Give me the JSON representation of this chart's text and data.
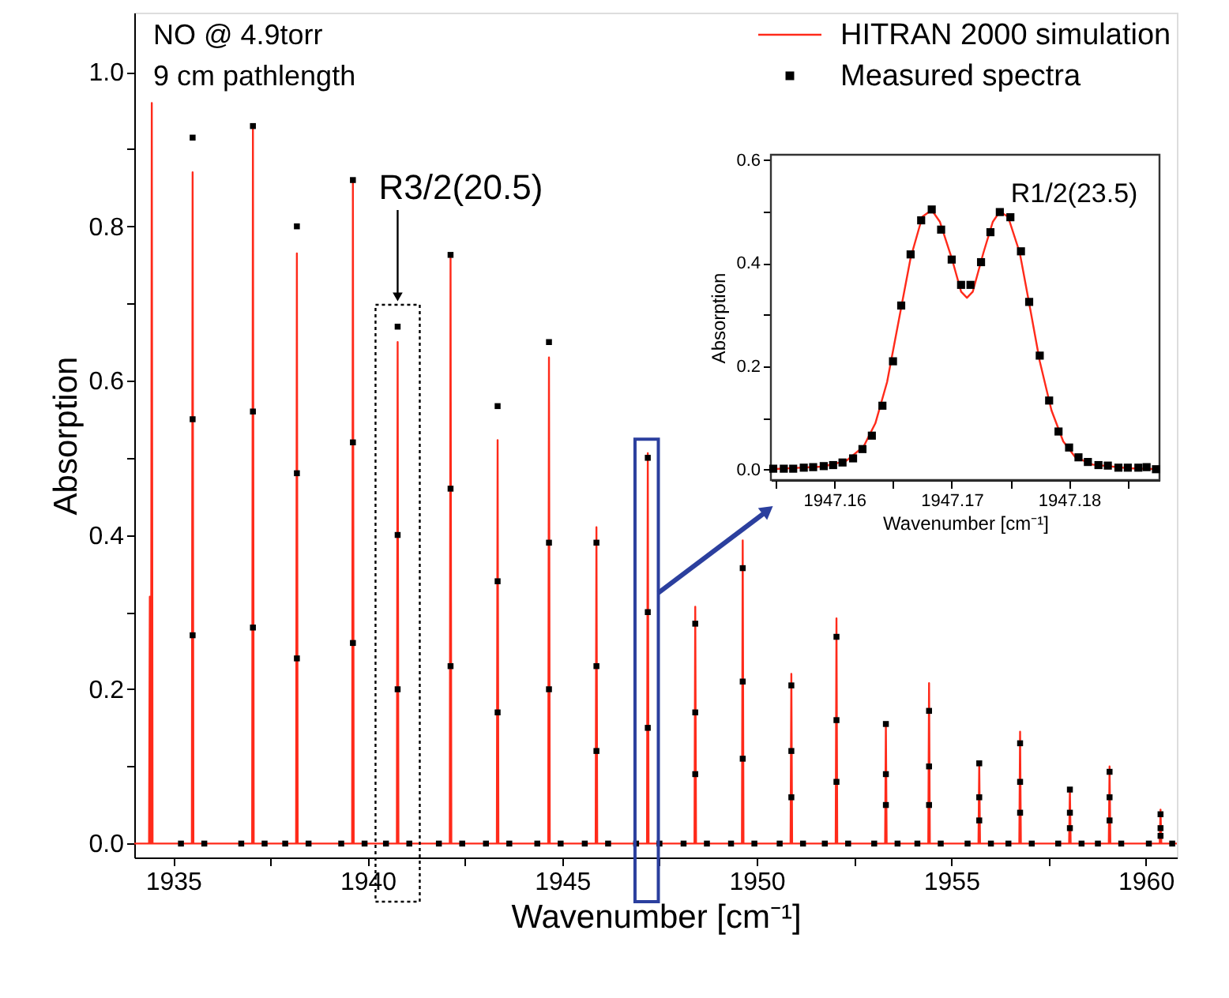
{
  "chart_data": [
    {
      "type": "line",
      "xlabel": "Wavenumber [cm⁻¹]",
      "ylabel": "Absorption",
      "legend": "top right",
      "xlim": [
        1934.0,
        1960.8
      ],
      "ylim": [
        -0.018,
        1.077
      ],
      "xticks": [
        1935,
        {
          "value": 1937.5,
          "label": null
        },
        1940,
        {
          "value": 1942.5,
          "label": null
        },
        1945,
        {
          "value": 1947.5,
          "label": null
        },
        1950,
        {
          "value": 1952.5,
          "label": null
        },
        1955,
        {
          "value": 1957.5,
          "label": null
        },
        1960
      ],
      "yticks": [
        {
          "value": 0,
          "label": "0.0"
        },
        {
          "value": 0.1,
          "label": null
        },
        0.2,
        {
          "value": 0.3,
          "label": null
        },
        0.4,
        {
          "value": 0.5,
          "label": null
        },
        0.6,
        {
          "value": 0.7,
          "label": null
        },
        0.8,
        {
          "value": 0.9,
          "label": null
        },
        {
          "value": 1,
          "label": "1.0"
        }
      ],
      "annotations": [
        "NO @ 4.9torr",
        "9 cm pathlength",
        "R3/2(20.5)"
      ],
      "series": [
        {
          "name": "HITRAN 2000 simulation",
          "type": "line",
          "color": "#ff2a1a",
          "x": [
            1934.0,
            1934.38,
            1934.4,
            1934.42,
            1934.43,
            1934.45,
            1934.47,
            1935.48,
            1935.5,
            1935.52,
            1937.03,
            1937.05,
            1937.07,
            1938.16,
            1938.18,
            1938.2,
            1939.6,
            1939.62,
            1939.64,
            1940.75,
            1940.77,
            1940.79,
            1942.11,
            1942.13,
            1942.15,
            1943.32,
            1943.34,
            1943.36,
            1944.64,
            1944.66,
            1944.68,
            1945.86,
            1945.88,
            1945.9,
            1947.18,
            1947.2,
            1947.22,
            1948.4,
            1948.42,
            1948.44,
            1949.62,
            1949.64,
            1949.66,
            1950.87,
            1950.89,
            1950.91,
            1952.03,
            1952.05,
            1952.07,
            1953.3,
            1953.32,
            1953.34,
            1954.41,
            1954.43,
            1954.45,
            1955.7,
            1955.72,
            1955.74,
            1956.75,
            1956.77,
            1956.79,
            1958.03,
            1958.05,
            1958.07,
            1959.05,
            1959.07,
            1959.09,
            1960.36,
            1960.38,
            1960.4,
            1960.8
          ],
          "values": [
            0,
            0,
            0.32,
            0,
            0,
            0.96,
            0,
            0,
            0.87,
            0,
            0,
            0.93,
            0,
            0,
            0.765,
            0,
            0,
            0.86,
            0,
            0,
            0.65,
            0,
            0,
            0.76,
            0,
            0,
            0.523,
            0,
            0,
            0.63,
            0,
            0,
            0.41,
            0,
            0,
            0.506,
            0,
            0,
            0.307,
            0,
            0,
            0.393,
            0,
            0,
            0.22,
            0,
            0,
            0.292,
            0,
            0,
            0.155,
            0,
            0,
            0.208,
            0,
            0,
            0.104,
            0,
            0,
            0.145,
            0,
            0,
            0.07,
            0,
            0,
            0.1,
            0,
            0,
            0.044,
            0,
            0
          ]
        },
        {
          "name": "Measured spectra",
          "type": "scatter",
          "marker": "square",
          "color": "#000000",
          "x": [
            1935.2,
            1935.5,
            1935.5,
            1935.5,
            1935.8,
            1936.75,
            1937.05,
            1937.05,
            1937.05,
            1937.35,
            1937.88,
            1938.18,
            1938.18,
            1938.18,
            1938.48,
            1939.32,
            1939.62,
            1939.62,
            1939.62,
            1939.92,
            1940.47,
            1940.77,
            1940.77,
            1940.77,
            1941.07,
            1941.83,
            1942.13,
            1942.13,
            1942.13,
            1942.43,
            1943.04,
            1943.34,
            1943.34,
            1943.34,
            1943.64,
            1944.36,
            1944.66,
            1944.66,
            1944.66,
            1944.96,
            1945.58,
            1945.88,
            1945.88,
            1945.88,
            1946.18,
            1946.9,
            1947.2,
            1947.2,
            1947.2,
            1947.5,
            1948.12,
            1948.42,
            1948.42,
            1948.42,
            1948.72,
            1949.34,
            1949.64,
            1949.64,
            1949.64,
            1949.94,
            1950.59,
            1950.89,
            1950.89,
            1950.89,
            1951.19,
            1951.75,
            1952.05,
            1952.05,
            1952.05,
            1952.35,
            1953.02,
            1953.32,
            1953.32,
            1953.32,
            1953.62,
            1954.13,
            1954.43,
            1954.43,
            1954.43,
            1954.73,
            1955.42,
            1955.72,
            1955.72,
            1955.72,
            1956.02,
            1956.47,
            1956.77,
            1956.77,
            1956.77,
            1957.07,
            1957.75,
            1958.05,
            1958.05,
            1958.05,
            1958.35,
            1958.77,
            1959.07,
            1959.07,
            1959.07,
            1959.37,
            1960.08,
            1960.38,
            1960.38,
            1960.38,
            1960.68
          ],
          "values": [
            0,
            0.915,
            0.55,
            0.27,
            0,
            0,
            0.93,
            0.56,
            0.28,
            0,
            0,
            0.8,
            0.48,
            0.24,
            0,
            0,
            0.86,
            0.52,
            0.26,
            0,
            0,
            0.67,
            0.4,
            0.2,
            0,
            0,
            0.763,
            0.46,
            0.23,
            0,
            0,
            0.567,
            0.34,
            0.17,
            0,
            0,
            0.65,
            0.39,
            0.2,
            0,
            0,
            0.39,
            0.23,
            0.12,
            0,
            0,
            0.5,
            0.3,
            0.15,
            0,
            0,
            0.285,
            0.17,
            0.09,
            0,
            0,
            0.357,
            0.21,
            0.11,
            0,
            0,
            0.205,
            0.12,
            0.06,
            0,
            0,
            0.268,
            0.16,
            0.08,
            0,
            0,
            0.155,
            0.09,
            0.05,
            0,
            0,
            0.172,
            0.1,
            0.05,
            0,
            0,
            0.104,
            0.06,
            0.03,
            0,
            0,
            0.13,
            0.08,
            0.04,
            0,
            0,
            0.07,
            0.04,
            0.02,
            0,
            0,
            0.093,
            0.06,
            0.03,
            0,
            0,
            0.038,
            0.02,
            0.01,
            0
          ]
        }
      ]
    },
    {
      "type": "line",
      "xlabel": "Wavenumber [cm⁻¹]",
      "ylabel": "Absorption",
      "xlim": [
        1947.1546,
        1947.1877
      ],
      "ylim": [
        -0.02,
        0.61
      ],
      "xticks": [
        {
          "value": 1947.155,
          "label": null
        },
        1947.16,
        {
          "value": 1947.165,
          "label": null
        },
        1947.17,
        {
          "value": 1947.175,
          "label": null
        },
        1947.18,
        {
          "value": 1947.185,
          "label": null
        }
      ],
      "yticks": [
        {
          "value": 0,
          "label": "0.0"
        },
        {
          "value": 0.1,
          "label": null
        },
        0.2,
        {
          "value": 0.3,
          "label": null
        },
        0.4,
        {
          "value": 0.5,
          "label": null
        },
        0.6
      ],
      "annotations": [
        {
          "text": "R1/2(23.5)",
          "x": 1947.1745,
          "y": 0.5
        }
      ],
      "series": [
        {
          "type": "line",
          "color": "#ff2a1a",
          "x": [
            1947.1546,
            1947.159,
            1947.161,
            1947.1625,
            1947.1635,
            1947.1645,
            1947.1655,
            1947.1665,
            1947.1675,
            1947.1683,
            1947.169,
            1947.17,
            1947.1708,
            1947.1713,
            1947.1718,
            1947.1727,
            1947.1735,
            1947.1741,
            1947.1748,
            1947.1758,
            1947.1767,
            1947.1775,
            1947.1785,
            1947.1795,
            1947.1805,
            1947.182,
            1947.185,
            1947.1877
          ],
          "values": [
            0.001,
            0.006,
            0.017,
            0.045,
            0.09,
            0.17,
            0.29,
            0.41,
            0.49,
            0.503,
            0.48,
            0.41,
            0.345,
            0.333,
            0.345,
            0.42,
            0.48,
            0.5,
            0.49,
            0.42,
            0.31,
            0.21,
            0.115,
            0.055,
            0.025,
            0.01,
            0.003,
            0.001
          ]
        },
        {
          "type": "scatter",
          "marker": "square",
          "color": "#000000",
          "x": [
            1947.1548,
            1947.1557,
            1947.1565,
            1947.1574,
            1947.1582,
            1947.1591,
            1947.1599,
            1947.1607,
            1947.1616,
            1947.1624,
            1947.1632,
            1947.1641,
            1947.165,
            1947.1657,
            1947.1665,
            1947.1674,
            1947.1683,
            1947.1691,
            1947.17,
            1947.1708,
            1947.1716,
            1947.1725,
            1947.1733,
            1947.1741,
            1947.175,
            1947.1759,
            1947.1766,
            1947.1775,
            1947.1783,
            1947.1791,
            1947.18,
            1947.1808,
            1947.1816,
            1947.1825,
            1947.1833,
            1947.1842,
            1947.185,
            1947.1859,
            1947.1866,
            1947.1874
          ],
          "values": [
            0.002,
            0.002,
            0.002,
            0.004,
            0.005,
            0.007,
            0.009,
            0.014,
            0.022,
            0.04,
            0.066,
            0.124,
            0.21,
            0.318,
            0.417,
            0.483,
            0.504,
            0.465,
            0.407,
            0.358,
            0.358,
            0.402,
            0.46,
            0.499,
            0.489,
            0.423,
            0.325,
            0.221,
            0.134,
            0.074,
            0.043,
            0.024,
            0.015,
            0.009,
            0.008,
            0.004,
            0.004,
            0.004,
            0.005,
            0.001
          ]
        }
      ]
    }
  ]
}
